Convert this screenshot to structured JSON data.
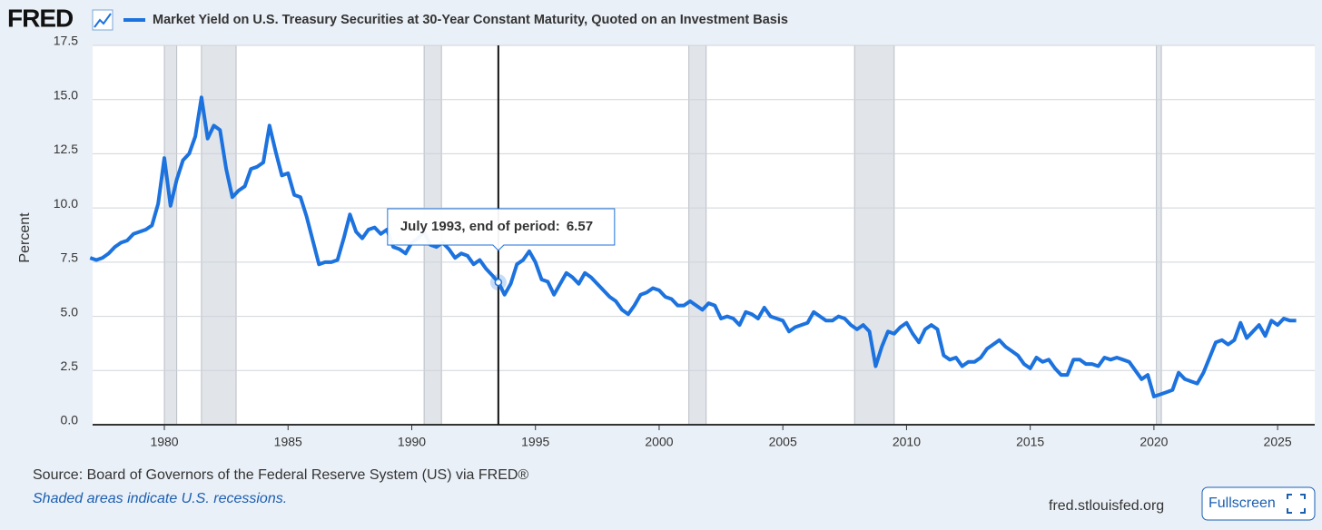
{
  "page": {
    "logo": "FRED",
    "source": "Source: Board of Governors of the Federal Reserve System (US) via FRED®",
    "note": "Shaded areas indicate U.S. recessions.",
    "site": "fred.stlouisfed.org",
    "button": "Fullscreen"
  },
  "chart_data": {
    "type": "line",
    "y_label": "Percent",
    "x": [
      1977,
      1977.25,
      1977.5,
      1977.75,
      1978,
      1978.25,
      1978.5,
      1978.75,
      1979,
      1979.25,
      1979.5,
      1979.75,
      1980,
      1980.25,
      1980.5,
      1980.75,
      1981,
      1981.25,
      1981.5,
      1981.75,
      1982,
      1982.25,
      1982.5,
      1982.75,
      1983,
      1983.25,
      1983.5,
      1983.75,
      1984,
      1984.25,
      1984.5,
      1984.75,
      1985,
      1985.25,
      1985.5,
      1985.75,
      1986,
      1986.25,
      1986.5,
      1986.75,
      1987,
      1987.25,
      1987.5,
      1987.75,
      1988,
      1988.25,
      1988.5,
      1988.75,
      1989,
      1989.25,
      1989.5,
      1989.75,
      1990,
      1990.25,
      1990.5,
      1990.75,
      1991,
      1991.25,
      1991.5,
      1991.75,
      1992,
      1992.25,
      1992.5,
      1992.75,
      1993,
      1993.25,
      1993.5,
      1993.75,
      1994,
      1994.25,
      1994.5,
      1994.75,
      1995,
      1995.25,
      1995.5,
      1995.75,
      1996,
      1996.25,
      1996.5,
      1996.75,
      1997,
      1997.25,
      1997.5,
      1997.75,
      1998,
      1998.25,
      1998.5,
      1998.75,
      1999,
      1999.25,
      1999.5,
      1999.75,
      2000,
      2000.25,
      2000.5,
      2000.75,
      2001,
      2001.25,
      2001.5,
      2001.75,
      2002,
      2002.25,
      2002.5,
      2002.75,
      2003,
      2003.25,
      2003.5,
      2003.75,
      2004,
      2004.25,
      2004.5,
      2004.75,
      2005,
      2005.25,
      2005.5,
      2005.75,
      2006,
      2006.25,
      2006.5,
      2006.75,
      2007,
      2007.25,
      2007.5,
      2007.75,
      2008,
      2008.25,
      2008.5,
      2008.75,
      2009,
      2009.25,
      2009.5,
      2009.75,
      2010,
      2010.25,
      2010.5,
      2010.75,
      2011,
      2011.25,
      2011.5,
      2011.75,
      2012,
      2012.25,
      2012.5,
      2012.75,
      2013,
      2013.25,
      2013.5,
      2013.75,
      2014,
      2014.25,
      2014.5,
      2014.75,
      2015,
      2015.25,
      2015.5,
      2015.75,
      2016,
      2016.25,
      2016.5,
      2016.75,
      2017,
      2017.25,
      2017.5,
      2017.75,
      2018,
      2018.25,
      2018.5,
      2018.75,
      2019,
      2019.25,
      2019.5,
      2019.75,
      2020,
      2020.25,
      2020.5,
      2020.75,
      2021,
      2021.25,
      2021.5,
      2021.75,
      2022,
      2022.25,
      2022.5,
      2022.75,
      2023,
      2023.25,
      2023.5,
      2023.75,
      2024,
      2024.25,
      2024.5,
      2024.75,
      2025,
      2025.25,
      2025.5,
      2025.75
    ],
    "series": [
      {
        "name": "Market Yield on U.S. Treasury Securities at 30-Year Constant Maturity, Quoted on an Investment Basis",
        "color": "#1c72de",
        "values": [
          7.7,
          7.6,
          7.7,
          7.9,
          8.2,
          8.4,
          8.5,
          8.8,
          8.9,
          9.0,
          9.2,
          10.2,
          12.3,
          10.1,
          11.3,
          12.2,
          12.5,
          13.3,
          15.1,
          13.2,
          13.8,
          13.6,
          11.8,
          10.5,
          10.8,
          11.0,
          11.8,
          11.9,
          12.1,
          13.8,
          12.6,
          11.5,
          11.6,
          10.6,
          10.5,
          9.6,
          8.5,
          7.4,
          7.5,
          7.5,
          7.6,
          8.6,
          9.7,
          8.9,
          8.6,
          9.0,
          9.1,
          8.8,
          9.0,
          8.2,
          8.1,
          7.9,
          8.4,
          8.6,
          8.9,
          8.3,
          8.2,
          8.4,
          8.1,
          7.7,
          7.9,
          7.8,
          7.4,
          7.6,
          7.2,
          6.9,
          6.57,
          6.0,
          6.5,
          7.4,
          7.6,
          8.0,
          7.5,
          6.7,
          6.6,
          6.0,
          6.5,
          7.0,
          6.8,
          6.5,
          7.0,
          6.8,
          6.5,
          6.2,
          5.9,
          5.7,
          5.3,
          5.1,
          5.5,
          6.0,
          6.1,
          6.3,
          6.2,
          5.9,
          5.8,
          5.5,
          5.5,
          5.7,
          5.5,
          5.3,
          5.6,
          5.5,
          4.9,
          5.0,
          4.9,
          4.6,
          5.2,
          5.1,
          4.9,
          5.4,
          5.0,
          4.9,
          4.8,
          4.3,
          4.5,
          4.6,
          4.7,
          5.2,
          5.0,
          4.8,
          4.8,
          5.0,
          4.9,
          4.6,
          4.4,
          4.6,
          4.3,
          2.7,
          3.6,
          4.3,
          4.2,
          4.5,
          4.7,
          4.2,
          3.8,
          4.4,
          4.6,
          4.4,
          3.2,
          3.0,
          3.1,
          2.7,
          2.9,
          2.9,
          3.1,
          3.5,
          3.7,
          3.9,
          3.6,
          3.4,
          3.2,
          2.8,
          2.6,
          3.1,
          2.9,
          3.0,
          2.6,
          2.3,
          2.3,
          3.0,
          3.0,
          2.8,
          2.8,
          2.7,
          3.1,
          3.0,
          3.1,
          3.0,
          2.9,
          2.5,
          2.1,
          2.3,
          1.3,
          1.4,
          1.5,
          1.6,
          2.4,
          2.1,
          2.0,
          1.9,
          2.4,
          3.1,
          3.8,
          3.9,
          3.7,
          3.9,
          4.7,
          4.0,
          4.3,
          4.6,
          4.1,
          4.8,
          4.6,
          4.9,
          4.8,
          4.8
        ]
      }
    ],
    "recessions": [
      [
        1980.0,
        1980.5
      ],
      [
        1981.5,
        1982.9
      ],
      [
        1990.5,
        1991.2
      ],
      [
        2001.2,
        2001.9
      ],
      [
        2007.9,
        2009.5
      ],
      [
        2020.1,
        2020.3
      ]
    ],
    "hover": {
      "label": "July 1993, end of period:",
      "x": 1993.5,
      "value": 6.57
    },
    "xlim": [
      1977.1,
      2026.5
    ],
    "xticks": [
      1980,
      1985,
      1990,
      1995,
      2000,
      2005,
      2010,
      2015,
      2020,
      2025
    ],
    "ylim": [
      0,
      17.5
    ],
    "yticks": [
      {
        "value": 0,
        "label": "0.0"
      },
      2.5,
      {
        "value": 5,
        "label": "5.0"
      },
      7.5,
      {
        "value": 10,
        "label": "10.0"
      },
      12.5,
      {
        "value": 15,
        "label": "15.0"
      },
      17.5
    ],
    "grid": true
  }
}
